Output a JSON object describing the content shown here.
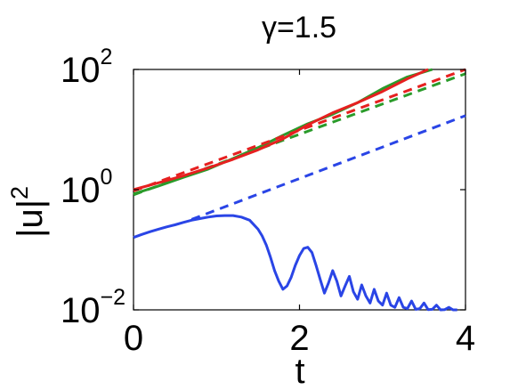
{
  "chart_data": {
    "type": "line",
    "title": "γ=1.5",
    "xlabel": "t",
    "ylabel": "|u|",
    "ylabel_sup": "2",
    "xlim": [
      0,
      4
    ],
    "ylim": [
      0.01,
      100
    ],
    "yscale": "log",
    "grid": false,
    "legend": "none",
    "x_ticks": [
      {
        "value": 0,
        "label": "0"
      },
      {
        "value": 2,
        "label": "2"
      },
      {
        "value": 4,
        "label": "4"
      }
    ],
    "y_ticks": [
      {
        "value": 0.01,
        "base": "10",
        "exp": "−2"
      },
      {
        "value": 1,
        "base": "10",
        "exp": "0"
      },
      {
        "value": 100,
        "base": "10",
        "exp": "2"
      }
    ],
    "series": [
      {
        "color": "#2a45e6",
        "style": "solid",
        "x": [
          0,
          0.1,
          0.2,
          0.3,
          0.4,
          0.5,
          0.6,
          0.7,
          0.8,
          0.9,
          1.0,
          1.1,
          1.2,
          1.3,
          1.4,
          1.5,
          1.55,
          1.6,
          1.65,
          1.7,
          1.75,
          1.8,
          1.85,
          1.9,
          1.95,
          2.0,
          2.05,
          2.1,
          2.15,
          2.2,
          2.25,
          2.3,
          2.35,
          2.4,
          2.45,
          2.5,
          2.55,
          2.6,
          2.65,
          2.7,
          2.75,
          2.8,
          2.85,
          2.9,
          2.95,
          3.0,
          3.05,
          3.1,
          3.15,
          3.2,
          3.25,
          3.3,
          3.35,
          3.4,
          3.45,
          3.5,
          3.55,
          3.6,
          3.65,
          3.7,
          3.75,
          3.8,
          3.85,
          3.9
        ],
        "y": [
          0.16,
          0.18,
          0.2,
          0.22,
          0.24,
          0.26,
          0.285,
          0.31,
          0.33,
          0.35,
          0.365,
          0.37,
          0.37,
          0.35,
          0.31,
          0.22,
          0.17,
          0.12,
          0.075,
          0.045,
          0.03,
          0.022,
          0.025,
          0.035,
          0.055,
          0.08,
          0.105,
          0.11,
          0.09,
          0.055,
          0.032,
          0.019,
          0.028,
          0.045,
          0.03,
          0.017,
          0.025,
          0.036,
          0.02,
          0.015,
          0.026,
          0.017,
          0.013,
          0.022,
          0.014,
          0.012,
          0.019,
          0.012,
          0.011,
          0.016,
          0.011,
          0.0105,
          0.014,
          0.0102,
          0.0105,
          0.013,
          0.0101,
          0.0102,
          0.012,
          0.01,
          0.0101,
          0.011,
          0.01,
          0.01
        ]
      },
      {
        "color": "#2a45e6",
        "style": "dashed",
        "x": [
          0.7,
          4.0
        ],
        "y": [
          0.32,
          17
        ]
      },
      {
        "color": "#2a9b2a",
        "style": "solid",
        "x": [
          0,
          0.3,
          0.6,
          0.9,
          1.2,
          1.5,
          1.8,
          2.1,
          2.4,
          2.7,
          3.0,
          3.3,
          3.6
        ],
        "y": [
          0.85,
          1.15,
          1.6,
          2.2,
          3.3,
          5.0,
          8.0,
          12.5,
          18.0,
          28,
          48,
          75,
          100
        ]
      },
      {
        "color": "#2a9b2a",
        "style": "dashed",
        "x": [
          0,
          4.0
        ],
        "y": [
          0.82,
          85
        ]
      },
      {
        "color": "#e62020",
        "style": "solid",
        "x": [
          0,
          0.3,
          0.6,
          0.9,
          1.2,
          1.5,
          1.8,
          2.1,
          2.4,
          2.7,
          3.0,
          3.3,
          3.55
        ],
        "y": [
          1.0,
          1.3,
          1.7,
          2.3,
          3.2,
          4.6,
          7.0,
          12.0,
          19.0,
          28,
          43,
          70,
          100
        ]
      },
      {
        "color": "#e62020",
        "style": "dashed",
        "x": [
          0,
          4.0
        ],
        "y": [
          0.95,
          100
        ]
      }
    ]
  }
}
